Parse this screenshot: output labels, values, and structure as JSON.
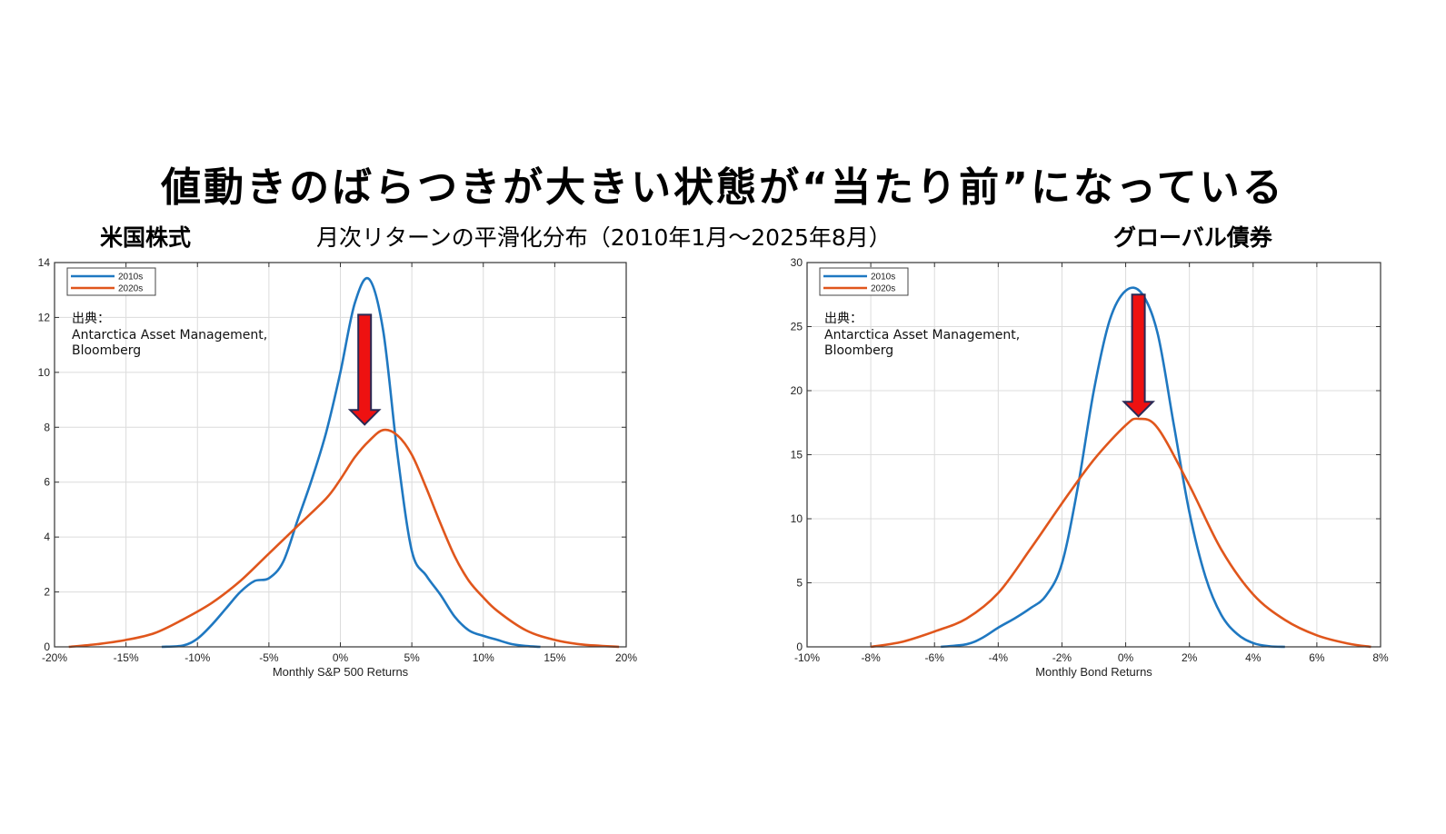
{
  "title": "値動きのばらつきが大きい状態が“当たり前”になっている",
  "subtitle_left": "米国株式",
  "subtitle_center": "月次リターンの平滑化分布（2010年1月～2025年8月）",
  "subtitle_right": "グローバル債券",
  "colors": {
    "series_2010s": "#1f78c1",
    "series_2020s": "#e0561c",
    "arrow": "#ee1111",
    "arrow_outline": "#2a2a55"
  },
  "chart_data": [
    {
      "type": "line",
      "xlabel": "Monthly S&P 500  Returns",
      "ylabel": "",
      "xlim": [
        -20,
        20
      ],
      "ylim": [
        0,
        14
      ],
      "x_ticks": [
        -20,
        -15,
        -10,
        -5,
        0,
        5,
        10,
        15,
        20
      ],
      "x_tick_labels": [
        "-20%",
        "-15%",
        "-10%",
        "-5%",
        "0%",
        "5%",
        "10%",
        "15%",
        "20%"
      ],
      "y_ticks": [
        0,
        2,
        4,
        6,
        8,
        10,
        12,
        14
      ],
      "y_tick_labels": [
        "0",
        "2",
        "4",
        "6",
        "8",
        "10",
        "12",
        "14"
      ],
      "grid": true,
      "legend_position": "top-left",
      "source_label": "出典：",
      "source_lines": [
        "Antarctica Asset Management,",
        "Bloomberg"
      ],
      "arrow_annotation": {
        "x": 1.7,
        "y_from": 12.1,
        "y_to": 8.1
      },
      "series": [
        {
          "name": "2010s",
          "x": [
            -12.5,
            -11,
            -10,
            -9,
            -8,
            -7,
            -6,
            -5,
            -4,
            -3,
            -2,
            -1,
            0,
            1,
            2,
            3,
            4,
            5,
            6,
            7,
            8,
            9,
            10,
            11,
            12,
            13,
            14
          ],
          "y": [
            0,
            0.05,
            0.3,
            0.8,
            1.4,
            2.0,
            2.4,
            2.5,
            3.1,
            4.6,
            6.1,
            7.8,
            10.0,
            12.5,
            13.4,
            11.5,
            7.0,
            3.5,
            2.6,
            1.9,
            1.1,
            0.6,
            0.4,
            0.25,
            0.1,
            0.03,
            0
          ]
        },
        {
          "name": "2020s",
          "x": [
            -19,
            -17,
            -15,
            -13,
            -11,
            -9,
            -7,
            -5,
            -3,
            -1,
            0,
            1,
            2,
            3,
            4,
            5,
            6,
            7,
            8,
            9,
            10,
            11,
            13,
            15,
            17,
            19.5
          ],
          "y": [
            0,
            0.1,
            0.25,
            0.5,
            1.0,
            1.6,
            2.4,
            3.4,
            4.4,
            5.4,
            6.1,
            6.9,
            7.5,
            7.9,
            7.7,
            7.0,
            5.8,
            4.5,
            3.3,
            2.4,
            1.8,
            1.3,
            0.6,
            0.25,
            0.08,
            0
          ]
        }
      ]
    },
    {
      "type": "line",
      "xlabel": "Monthly Bond Returns",
      "ylabel": "",
      "xlim": [
        -10,
        8
      ],
      "ylim": [
        0,
        30
      ],
      "x_ticks": [
        -10,
        -8,
        -6,
        -4,
        -2,
        0,
        2,
        4,
        6,
        8
      ],
      "x_tick_labels": [
        "-10%",
        "-8%",
        "-6%",
        "-4%",
        "-2%",
        "0%",
        "2%",
        "4%",
        "6%",
        "8%"
      ],
      "y_ticks": [
        0,
        5,
        10,
        15,
        20,
        25,
        30
      ],
      "y_tick_labels": [
        "0",
        "5",
        "10",
        "15",
        "20",
        "25",
        "30"
      ],
      "grid": true,
      "legend_position": "top-left",
      "source_label": "出典：",
      "source_lines": [
        "Antarctica Asset Management,",
        "Bloomberg"
      ],
      "arrow_annotation": {
        "x": 0.4,
        "y_from": 27.5,
        "y_to": 18.0
      },
      "series": [
        {
          "name": "2010s",
          "x": [
            -5.8,
            -5,
            -4.5,
            -4,
            -3.5,
            -3,
            -2.5,
            -2,
            -1.5,
            -1,
            -0.5,
            0,
            0.5,
            1,
            1.5,
            2,
            2.5,
            3,
            3.5,
            4,
            4.5,
            5
          ],
          "y": [
            0,
            0.2,
            0.7,
            1.5,
            2.2,
            3.0,
            4.0,
            6.5,
            12.5,
            20.0,
            25.5,
            27.8,
            27.6,
            24.5,
            17.5,
            10.5,
            5.5,
            2.5,
            1.0,
            0.3,
            0.05,
            0
          ]
        },
        {
          "name": "2020s",
          "x": [
            -8,
            -7,
            -6,
            -5,
            -4,
            -3,
            -2,
            -1,
            0,
            0.4,
            1,
            2,
            3,
            4,
            5,
            6,
            7,
            7.7
          ],
          "y": [
            0,
            0.4,
            1.2,
            2.2,
            4.2,
            7.6,
            11.2,
            14.6,
            17.3,
            17.8,
            17.1,
            12.6,
            7.6,
            4.1,
            2.1,
            0.9,
            0.25,
            0
          ]
        }
      ]
    }
  ]
}
